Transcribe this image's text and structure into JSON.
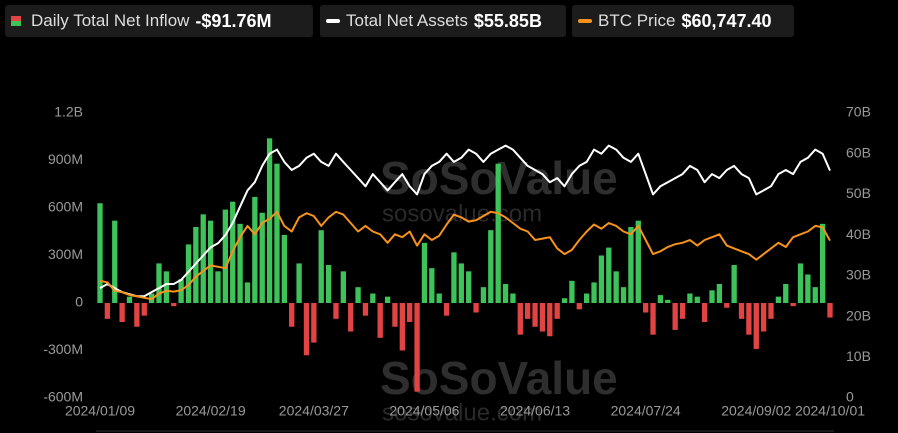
{
  "chart_data": {
    "type": "combo",
    "watermark": [
      "SoSoValue",
      "sosovalue.com"
    ],
    "categories": [
      "2024/01/09",
      null,
      null,
      null,
      null,
      null,
      null,
      null,
      null,
      null,
      null,
      null,
      null,
      null,
      null,
      "2024/02/19",
      null,
      null,
      null,
      null,
      null,
      null,
      null,
      null,
      null,
      null,
      null,
      null,
      null,
      "2024/03/27",
      null,
      null,
      null,
      null,
      null,
      null,
      null,
      null,
      null,
      null,
      null,
      null,
      null,
      null,
      "2024/05/06",
      null,
      null,
      null,
      null,
      null,
      null,
      null,
      null,
      null,
      null,
      null,
      null,
      null,
      null,
      "2024/06/13",
      null,
      null,
      null,
      null,
      null,
      null,
      null,
      null,
      null,
      null,
      null,
      null,
      null,
      null,
      "2024/07/24",
      null,
      null,
      null,
      null,
      null,
      null,
      null,
      null,
      null,
      null,
      null,
      null,
      null,
      null,
      "2024/09/02",
      null,
      null,
      null,
      null,
      null,
      null,
      null,
      null,
      null,
      "2024/10/01"
    ],
    "ylim": [
      -600,
      1200
    ],
    "yticks": [
      {
        "value": 1200,
        "label": "1.2B"
      },
      {
        "value": 900,
        "label": "900M"
      },
      {
        "value": 600,
        "label": "600M"
      },
      {
        "value": 300,
        "label": "300M"
      },
      0,
      {
        "value": -300,
        "label": "-300M"
      },
      {
        "value": -600,
        "label": "-600M"
      }
    ],
    "y2lim": [
      0,
      70
    ],
    "y2ticks": [
      0,
      {
        "value": 10,
        "label": "10B"
      },
      {
        "value": 20,
        "label": "20B"
      },
      {
        "value": 30,
        "label": "30B"
      },
      {
        "value": 40,
        "label": "40B"
      },
      {
        "value": 50,
        "label": "50B"
      },
      {
        "value": 60,
        "label": "60B"
      },
      {
        "value": 70,
        "label": "70B"
      }
    ],
    "y3lim": [
      5000,
      106000
    ],
    "grid": false,
    "series": [
      {
        "name": "Daily Total Net Inflow",
        "type": "bar",
        "color": "#3ec25a",
        "negative_color": "#e24444",
        "value_label": "-$91.76M",
        "values": [
          630,
          -100,
          520,
          -120,
          40,
          -150,
          -80,
          60,
          250,
          200,
          -20,
          150,
          370,
          480,
          560,
          520,
          200,
          590,
          640,
          500,
          130,
          670,
          570,
          1040,
          880,
          430,
          -150,
          250,
          -330,
          -250,
          460,
          240,
          -100,
          200,
          -180,
          100,
          -80,
          60,
          -220,
          40,
          -150,
          -300,
          -120,
          -560,
          380,
          220,
          60,
          -80,
          320,
          250,
          200,
          -60,
          100,
          460,
          880,
          120,
          60,
          -200,
          -100,
          -150,
          -180,
          -210,
          -100,
          30,
          140,
          -40,
          60,
          130,
          300,
          350,
          200,
          100,
          480,
          520,
          -60,
          -200,
          50,
          20,
          -170,
          -100,
          60,
          40,
          -120,
          80,
          120,
          -30,
          240,
          -100,
          -200,
          -290,
          -180,
          -100,
          40,
          120,
          -20,
          250,
          180,
          100,
          500,
          -91.76
        ]
      },
      {
        "name": "Total Net Assets",
        "type": "line",
        "axis": "y2",
        "color": "#ffffff",
        "value_label": "$55.85B",
        "values": [
          27,
          28,
          27,
          26,
          25.5,
          25,
          25,
          26,
          27,
          28,
          28,
          29,
          31,
          33,
          35,
          37,
          38,
          40,
          43,
          47,
          51,
          53,
          57,
          60,
          61,
          58,
          56,
          57,
          59,
          60,
          58,
          57,
          60,
          58,
          56,
          54,
          52,
          55,
          53,
          51,
          53,
          55,
          52,
          50,
          55,
          57,
          58,
          60,
          58,
          59,
          61,
          60,
          58,
          60,
          61,
          62,
          61,
          59,
          57,
          56,
          55,
          53,
          54,
          52,
          55,
          57,
          58,
          61,
          60,
          62,
          61,
          59,
          58,
          60,
          55,
          50,
          52,
          53,
          54,
          55,
          57,
          56,
          53,
          55,
          54,
          56,
          57,
          55,
          54,
          50,
          51,
          52,
          55,
          56,
          55,
          58,
          59,
          61,
          60,
          55.85
        ]
      },
      {
        "name": "BTC Price",
        "type": "line",
        "axis": "y3",
        "color": "#f7931a",
        "value_label": "$60,747.40",
        "values": [
          46500,
          46000,
          43000,
          42500,
          41500,
          41000,
          40500,
          40000,
          42000,
          43000,
          42700,
          43200,
          45000,
          48000,
          50000,
          52000,
          51500,
          51000,
          57000,
          62000,
          66000,
          63000,
          67000,
          68500,
          71000,
          66000,
          64000,
          69000,
          70500,
          69500,
          66000,
          69000,
          71000,
          70000,
          67000,
          64000,
          66000,
          64000,
          63000,
          60000,
          63000,
          62000,
          64000,
          59000,
          63000,
          61000,
          62500,
          66500,
          70000,
          69000,
          67500,
          68000,
          69500,
          71000,
          70500,
          69000,
          67000,
          65000,
          64000,
          61000,
          61500,
          62000,
          58000,
          56000,
          57500,
          61000,
          64000,
          66500,
          65000,
          67000,
          66000,
          64000,
          63000,
          66000,
          61000,
          56000,
          57000,
          58500,
          59500,
          60000,
          61000,
          59000,
          61000,
          62000,
          63000,
          59000,
          58000,
          57000,
          56000,
          54000,
          56000,
          58000,
          60000,
          58500,
          62000,
          63000,
          64000,
          66000,
          65500,
          60747.4
        ]
      }
    ]
  }
}
